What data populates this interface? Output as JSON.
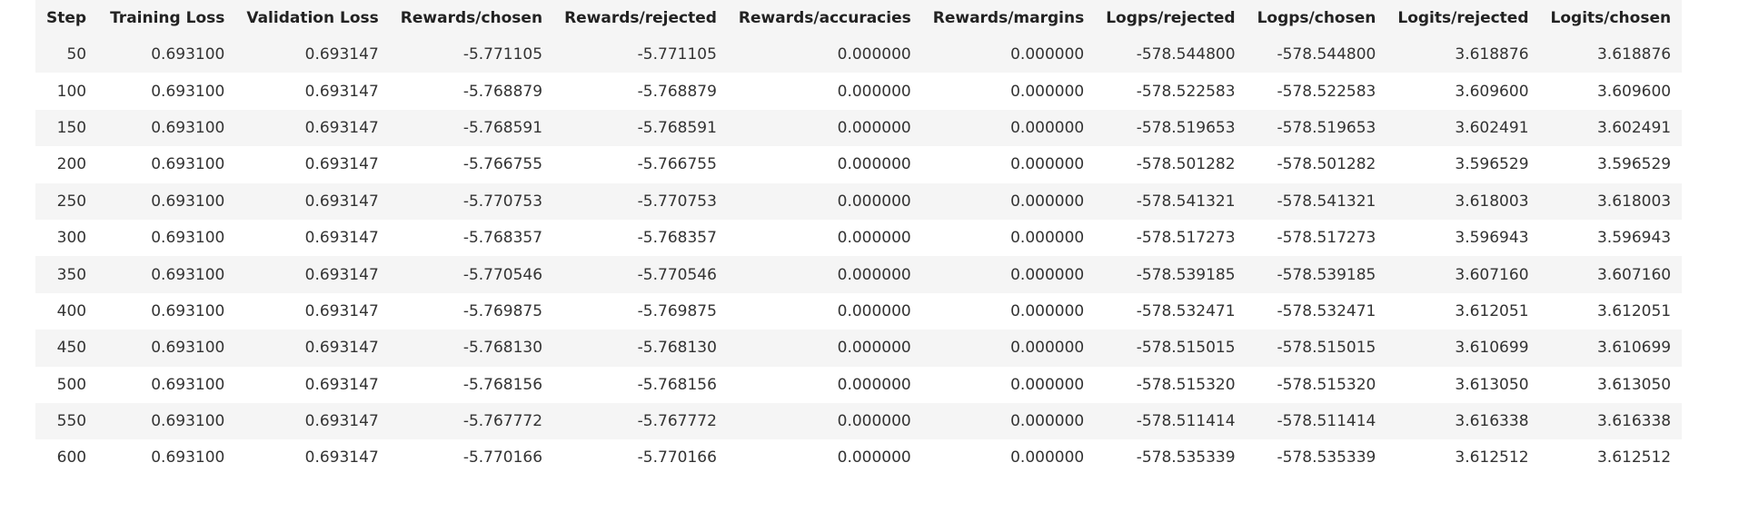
{
  "table": {
    "columns": [
      "Step",
      "Training Loss",
      "Validation Loss",
      "Rewards/chosen",
      "Rewards/rejected",
      "Rewards/accuracies",
      "Rewards/margins",
      "Logps/rejected",
      "Logps/chosen",
      "Logits/rejected",
      "Logits/chosen"
    ],
    "rows": [
      [
        "50",
        "0.693100",
        "0.693147",
        "-5.771105",
        "-5.771105",
        "0.000000",
        "0.000000",
        "-578.544800",
        "-578.544800",
        "3.618876",
        "3.618876"
      ],
      [
        "100",
        "0.693100",
        "0.693147",
        "-5.768879",
        "-5.768879",
        "0.000000",
        "0.000000",
        "-578.522583",
        "-578.522583",
        "3.609600",
        "3.609600"
      ],
      [
        "150",
        "0.693100",
        "0.693147",
        "-5.768591",
        "-5.768591",
        "0.000000",
        "0.000000",
        "-578.519653",
        "-578.519653",
        "3.602491",
        "3.602491"
      ],
      [
        "200",
        "0.693100",
        "0.693147",
        "-5.766755",
        "-5.766755",
        "0.000000",
        "0.000000",
        "-578.501282",
        "-578.501282",
        "3.596529",
        "3.596529"
      ],
      [
        "250",
        "0.693100",
        "0.693147",
        "-5.770753",
        "-5.770753",
        "0.000000",
        "0.000000",
        "-578.541321",
        "-578.541321",
        "3.618003",
        "3.618003"
      ],
      [
        "300",
        "0.693100",
        "0.693147",
        "-5.768357",
        "-5.768357",
        "0.000000",
        "0.000000",
        "-578.517273",
        "-578.517273",
        "3.596943",
        "3.596943"
      ],
      [
        "350",
        "0.693100",
        "0.693147",
        "-5.770546",
        "-5.770546",
        "0.000000",
        "0.000000",
        "-578.539185",
        "-578.539185",
        "3.607160",
        "3.607160"
      ],
      [
        "400",
        "0.693100",
        "0.693147",
        "-5.769875",
        "-5.769875",
        "0.000000",
        "0.000000",
        "-578.532471",
        "-578.532471",
        "3.612051",
        "3.612051"
      ],
      [
        "450",
        "0.693100",
        "0.693147",
        "-5.768130",
        "-5.768130",
        "0.000000",
        "0.000000",
        "-578.515015",
        "-578.515015",
        "3.610699",
        "3.610699"
      ],
      [
        "500",
        "0.693100",
        "0.693147",
        "-5.768156",
        "-5.768156",
        "0.000000",
        "0.000000",
        "-578.515320",
        "-578.515320",
        "3.613050",
        "3.613050"
      ],
      [
        "550",
        "0.693100",
        "0.693147",
        "-5.767772",
        "-5.767772",
        "0.000000",
        "0.000000",
        "-578.511414",
        "-578.511414",
        "3.616338",
        "3.616338"
      ],
      [
        "600",
        "0.693100",
        "0.693147",
        "-5.770166",
        "-5.770166",
        "0.000000",
        "0.000000",
        "-578.535339",
        "-578.535339",
        "3.612512",
        "3.612512"
      ]
    ]
  }
}
